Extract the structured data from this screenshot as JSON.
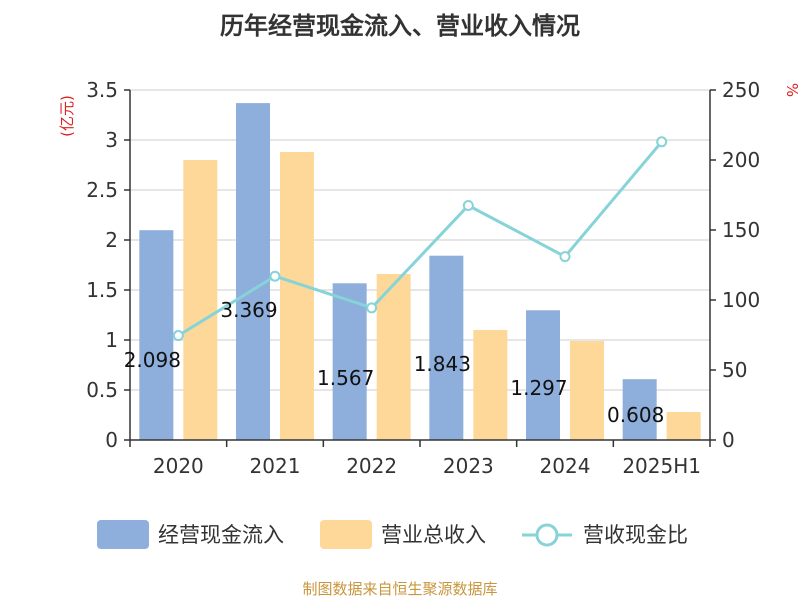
{
  "source_note": "制图数据来自恒生聚源数据库",
  "chart_data": {
    "type": "bar",
    "title": "历年经营现金流入、营业收入情况",
    "categories": [
      "2020",
      "2021",
      "2022",
      "2023",
      "2024",
      "2025H1"
    ],
    "left_axis": {
      "unit": "(亿元)",
      "ylim": [
        0,
        3.5
      ],
      "ticks": [
        "0",
        "0.5",
        "1",
        "1.5",
        "2",
        "2.5",
        "3",
        "3.5"
      ]
    },
    "right_axis": {
      "unit": "%",
      "ylim": [
        0,
        250
      ],
      "ticks": [
        "0",
        "50",
        "100",
        "150",
        "200",
        "250"
      ]
    },
    "grid": true,
    "legend_position": "bottom",
    "series": [
      {
        "name": "经营现金流入",
        "kind": "bar",
        "axis": "left",
        "color": "#8eaedb",
        "values": [
          2.098,
          3.369,
          1.567,
          1.843,
          1.297,
          0.608
        ],
        "labels": [
          "2.098",
          "3.369",
          "1.567",
          "1.843",
          "1.297",
          "0.608"
        ]
      },
      {
        "name": "营业总收入",
        "kind": "bar",
        "axis": "left",
        "color": "#fed899",
        "values": [
          2.8,
          2.88,
          1.66,
          1.1,
          0.99,
          0.28
        ]
      },
      {
        "name": "营收现金比",
        "kind": "line",
        "axis": "right",
        "color": "#86d3d8",
        "values": [
          74.6,
          117,
          94.4,
          167.5,
          131,
          213
        ]
      }
    ]
  }
}
